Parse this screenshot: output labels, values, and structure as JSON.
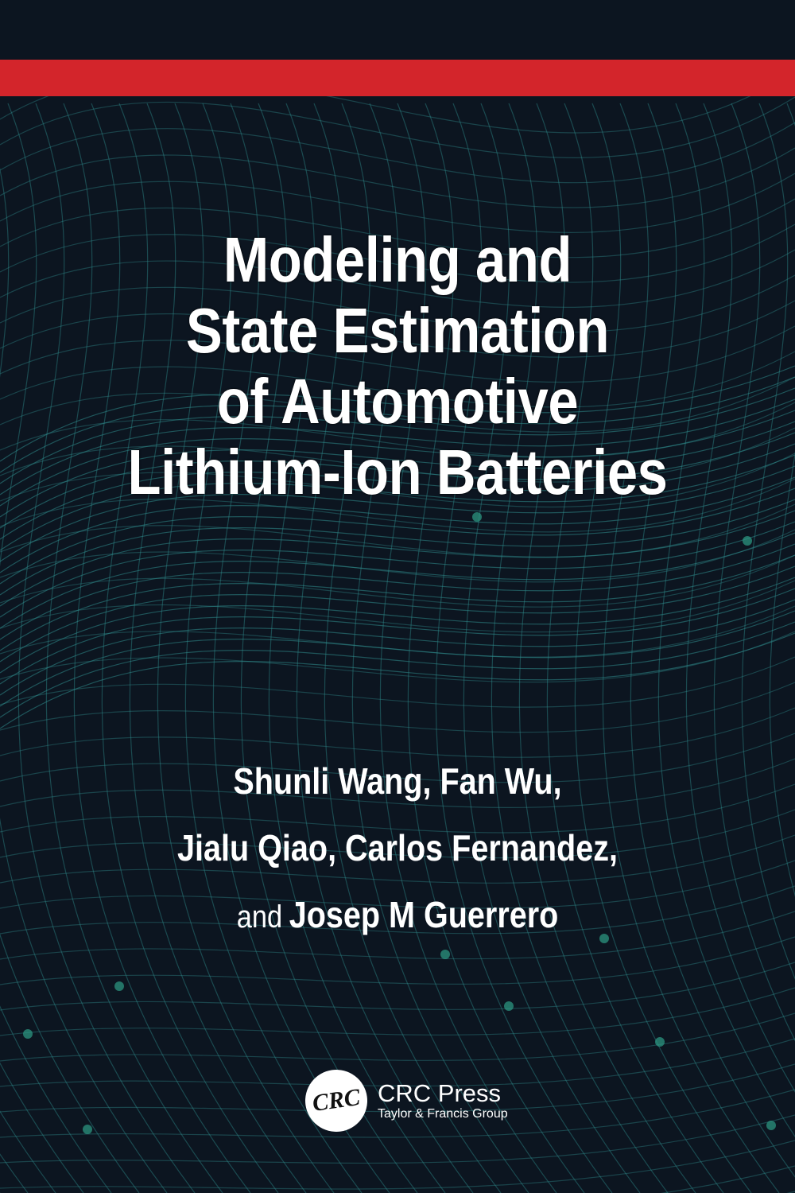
{
  "cover": {
    "title_lines": [
      "Modeling and",
      "State Estimation",
      "of Automotive",
      "Lithium-Ion Batteries"
    ],
    "authors": {
      "line1": "Shunli Wang, Fan Wu,",
      "line2": "Jialu Qiao, Carlos Fernandez,",
      "line3_prefix": "and",
      "line3": "Josep M Guerrero"
    },
    "publisher": {
      "logo_text": "CRC",
      "name": "CRC Press",
      "group": "Taylor & Francis Group"
    },
    "colors": {
      "background": "#0c1520",
      "accent_bar": "#d3252b",
      "mesh": "#2f8c8c"
    }
  }
}
